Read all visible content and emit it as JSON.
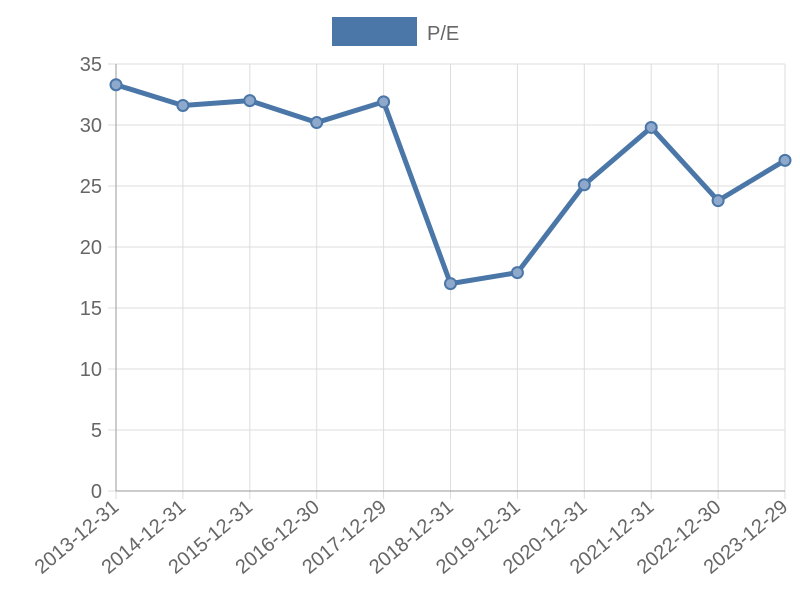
{
  "chart_data": {
    "type": "line",
    "categories": [
      "2013-12-31",
      "2014-12-31",
      "2015-12-31",
      "2016-12-30",
      "2017-12-29",
      "2018-12-31",
      "2019-12-31",
      "2020-12-31",
      "2021-12-31",
      "2022-12-30",
      "2023-12-29"
    ],
    "series": [
      {
        "name": "P/E",
        "color": "#4a76a8",
        "values": [
          33.3,
          31.6,
          32.0,
          30.2,
          31.9,
          17.0,
          17.9,
          25.1,
          29.8,
          23.8,
          27.1
        ]
      }
    ],
    "ylim": [
      0,
      35
    ],
    "yticks": [
      0,
      5,
      10,
      15,
      20,
      25,
      30,
      35
    ],
    "grid": true,
    "legend": "top"
  }
}
